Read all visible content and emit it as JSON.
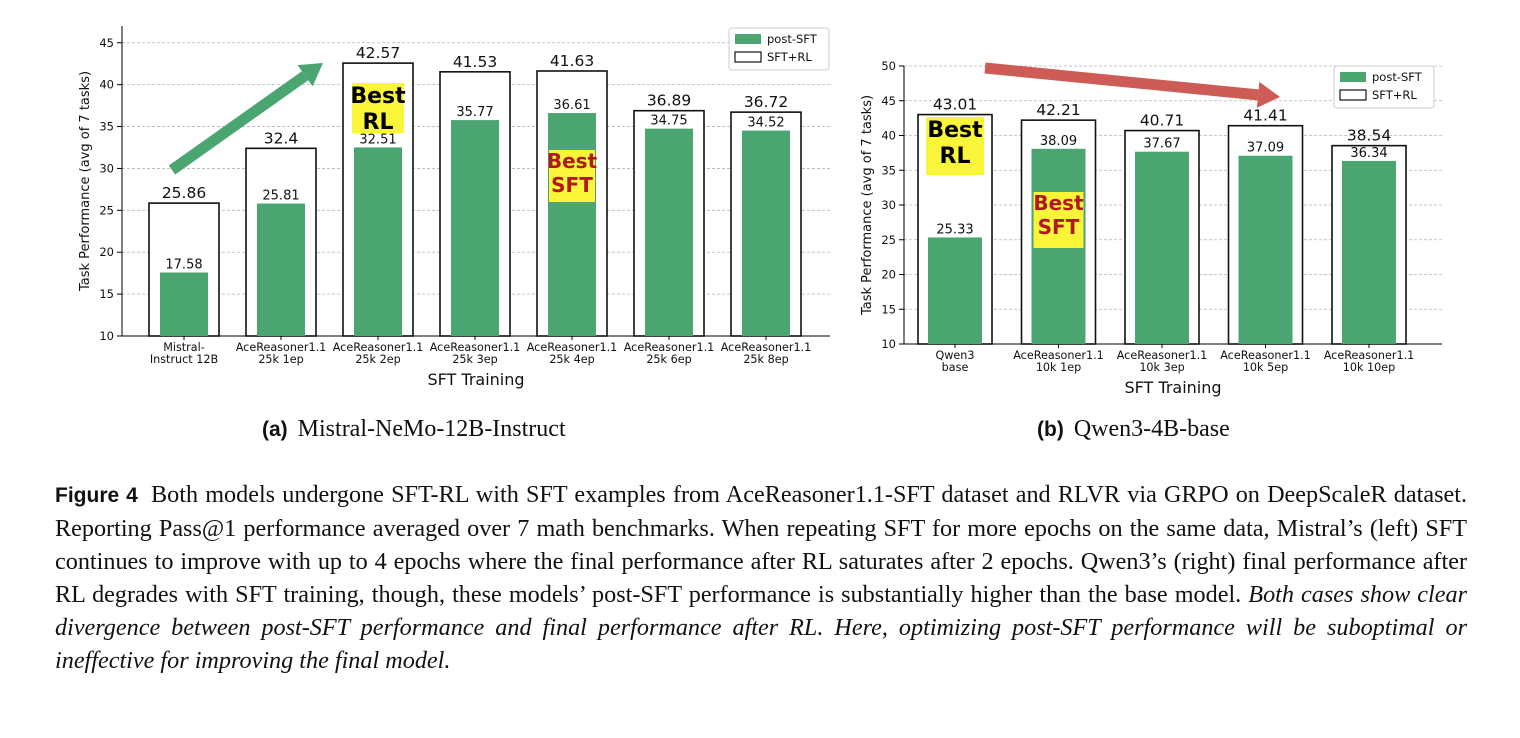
{
  "colors": {
    "post_sft": "#4aa571",
    "sft_rl": "#ffffff",
    "arrow_up": "#4aa571",
    "arrow_down": "#cd5c57",
    "highlight_bg": "#fbf53a",
    "highlight_red_text": "#b0191f"
  },
  "chart_data": [
    {
      "type": "bar",
      "xlabel": "SFT Training",
      "ylabel": "Task Performance (avg of 7 tasks)",
      "ylim": [
        10,
        47
      ],
      "yticks": [
        10,
        15,
        20,
        25,
        30,
        35,
        40,
        45
      ],
      "grid": true,
      "legend_position": "top-right",
      "categories": [
        [
          "Mistral-",
          "Instruct 12B"
        ],
        [
          "AceReasoner1.1",
          "25k 1ep"
        ],
        [
          "AceReasoner1.1",
          "25k 2ep"
        ],
        [
          "AceReasoner1.1",
          "25k 3ep"
        ],
        [
          "AceReasoner1.1",
          "25k 4ep"
        ],
        [
          "AceReasoner1.1",
          "25k 6ep"
        ],
        [
          "AceReasoner1.1",
          "25k 8ep"
        ]
      ],
      "series": [
        {
          "name": "post-SFT",
          "values": [
            17.58,
            25.81,
            32.51,
            35.77,
            36.61,
            34.75,
            34.52
          ]
        },
        {
          "name": "SFT+RL",
          "values": [
            25.86,
            32.4,
            42.57,
            41.53,
            41.63,
            36.89,
            36.72
          ]
        }
      ],
      "value_labels": {
        "post-SFT": [
          "17.58",
          "25.81",
          "32.51",
          "35.77",
          "36.61",
          "34.75",
          "34.52"
        ],
        "SFT+RL": [
          "25.86",
          "32.4",
          "42.57",
          "41.53",
          "41.63",
          "36.89",
          "36.72"
        ]
      },
      "annotations": [
        {
          "text": [
            "Best",
            "RL"
          ],
          "bar_index": 2,
          "style": "black-on-yellow"
        },
        {
          "text": [
            "Best",
            "SFT"
          ],
          "bar_index": 4,
          "style": "red-on-yellow"
        }
      ],
      "trend_arrow": "up"
    },
    {
      "type": "bar",
      "xlabel": "SFT Training",
      "ylabel": "Task Performance (avg of 7 tasks)",
      "ylim": [
        10,
        50
      ],
      "yticks": [
        10,
        15,
        20,
        25,
        30,
        35,
        40,
        45,
        50
      ],
      "grid": true,
      "legend_position": "top-right",
      "categories": [
        [
          "Qwen3",
          "base"
        ],
        [
          "AceReasoner1.1",
          "10k 1ep"
        ],
        [
          "AceReasoner1.1",
          "10k 3ep"
        ],
        [
          "AceReasoner1.1",
          "10k 5ep"
        ],
        [
          "AceReasoner1.1",
          "10k 10ep"
        ]
      ],
      "series": [
        {
          "name": "post-SFT",
          "values": [
            25.33,
            38.09,
            37.67,
            37.09,
            36.34
          ]
        },
        {
          "name": "SFT+RL",
          "values": [
            43.01,
            42.21,
            40.71,
            41.41,
            38.54
          ]
        }
      ],
      "value_labels": {
        "post-SFT": [
          "25.33",
          "38.09",
          "37.67",
          "37.09",
          "36.34"
        ],
        "SFT+RL": [
          "43.01",
          "42.21",
          "40.71",
          "41.41",
          "38.54"
        ]
      },
      "annotations": [
        {
          "text": [
            "Best",
            "RL"
          ],
          "bar_index": 0,
          "style": "black-on-yellow"
        },
        {
          "text": [
            "Best",
            "SFT"
          ],
          "bar_index": 1,
          "style": "red-on-yellow"
        }
      ],
      "trend_arrow": "down"
    }
  ],
  "subcaptions": {
    "a": {
      "tag": "(a)",
      "text": "Mistral-NeMo-12B-Instruct"
    },
    "b": {
      "tag": "(b)",
      "text": "Qwen3-4B-base"
    }
  },
  "caption": {
    "label": "Figure 4",
    "text": "Both models undergone SFT-RL with SFT examples from AceReasoner1.1-SFT dataset and RLVR via GRPO on DeepScaleR dataset. Reporting Pass@1 performance averaged over 7 math benchmarks. When repeating SFT for more epochs on the same data, Mistral’s (left) SFT continues to improve with up to 4 epochs where the final performance after RL saturates after 2 epochs. Qwen3’s (right) final performance after RL degrades with SFT training, though, these models’ post-SFT performance is substantially higher than the base model.",
    "italic": "Both cases show clear divergence between post-SFT performance and final performance after RL. Here, optimizing post-SFT performance will be suboptimal or ineffective for improving the final model."
  }
}
